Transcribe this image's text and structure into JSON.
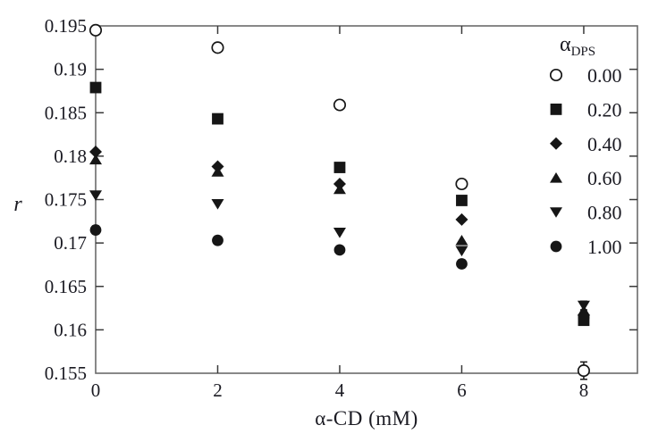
{
  "page": {
    "background": "#ffffff"
  },
  "chart_data": {
    "type": "scatter",
    "title": "",
    "xlabel": "α-CD (mM)",
    "ylabel": "r",
    "xlim": [
      0,
      8.88
    ],
    "ylim": [
      0.155,
      0.195
    ],
    "grid": false,
    "axis_color": "#6b6b6b",
    "tick_color": "#3a3a3a",
    "text_color": "#1a1a22",
    "marker_color": "#161616",
    "x": [
      0,
      2,
      4,
      6,
      8
    ],
    "x_tick_labels": [
      "0",
      "2",
      "4",
      "6",
      "8"
    ],
    "x_ticks_marked": [
      2,
      4,
      6,
      8
    ],
    "y_tick_values": [
      0.155,
      0.16,
      0.165,
      0.17,
      0.175,
      0.18,
      0.185,
      0.19,
      0.195
    ],
    "y_tick_labels": [
      "0.155",
      "0.16",
      "0.165",
      "0.17",
      "0.175",
      "0.18",
      "0.185",
      "0.19",
      "0.195"
    ],
    "y_ticks_marked": [
      0.16,
      0.165,
      0.17,
      0.175,
      0.18,
      0.185,
      0.19
    ],
    "legend": {
      "position": "top-right",
      "title_main": "α",
      "title_sub": "DPS"
    },
    "series": [
      {
        "label": "0.00",
        "marker": "circle-open",
        "values": [
          0.1945,
          0.1925,
          0.1859,
          0.1768,
          0.1553
        ],
        "yerr": [
          null,
          null,
          null,
          null,
          0.001
        ]
      },
      {
        "label": "0.20",
        "marker": "square",
        "values": [
          0.1879,
          0.1843,
          0.1787,
          0.1749,
          0.1611
        ],
        "yerr": [
          null,
          null,
          null,
          null,
          0.0005
        ]
      },
      {
        "label": "0.40",
        "marker": "diamond",
        "values": [
          0.1805,
          0.1788,
          0.1768,
          0.1727,
          0.1617
        ],
        "yerr": [
          null,
          null,
          null,
          null,
          null
        ]
      },
      {
        "label": "0.60",
        "marker": "triangle-up",
        "values": [
          0.1796,
          0.1782,
          0.1762,
          0.1703,
          0.1622
        ],
        "yerr": [
          null,
          null,
          null,
          null,
          null
        ]
      },
      {
        "label": "0.80",
        "marker": "triangle-down",
        "values": [
          0.1755,
          0.1745,
          0.1712,
          0.1691,
          0.1628
        ],
        "yerr": [
          null,
          null,
          null,
          null,
          0.0005
        ]
      },
      {
        "label": "1.00",
        "marker": "circle",
        "values": [
          0.1715,
          0.1703,
          0.1692,
          0.1676,
          0.1614
        ],
        "yerr": [
          null,
          null,
          null,
          null,
          null
        ]
      }
    ]
  }
}
